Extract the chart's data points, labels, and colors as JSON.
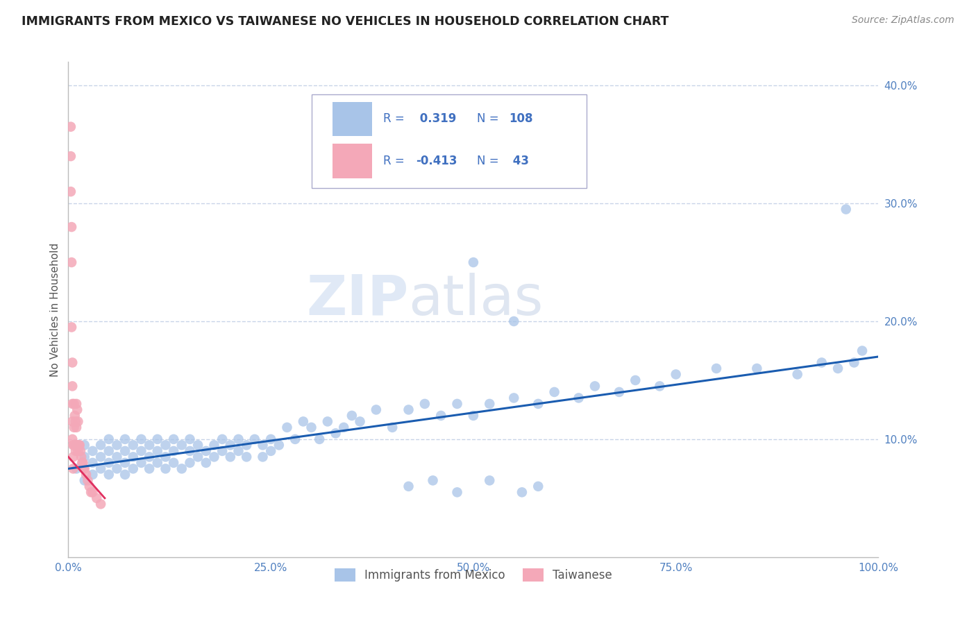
{
  "title": "IMMIGRANTS FROM MEXICO VS TAIWANESE NO VEHICLES IN HOUSEHOLD CORRELATION CHART",
  "source": "Source: ZipAtlas.com",
  "ylabel": "No Vehicles in Household",
  "xlim": [
    0,
    1.0
  ],
  "ylim": [
    0,
    0.42
  ],
  "yticks": [
    0.1,
    0.2,
    0.3,
    0.4
  ],
  "ytick_labels": [
    "10.0%",
    "20.0%",
    "30.0%",
    "40.0%"
  ],
  "xticks": [
    0,
    0.25,
    0.5,
    0.75,
    1.0
  ],
  "xtick_labels": [
    "0.0%",
    "25.0%",
    "50.0%",
    "75.0%",
    "100.0%"
  ],
  "blue_r": 0.319,
  "blue_n": 108,
  "pink_r": -0.413,
  "pink_n": 43,
  "blue_color": "#a8c4e8",
  "pink_color": "#f4a8b8",
  "blue_line_color": "#1a5cb0",
  "pink_line_color": "#e03060",
  "watermark_zip": "ZIP",
  "watermark_atlas": "atlas",
  "background_color": "#ffffff",
  "grid_color": "#c8d4e8",
  "title_color": "#222222",
  "source_color": "#888888",
  "axis_label_color": "#555555",
  "tick_color": "#5080c0",
  "legend_text_color": "#4070c0",
  "legend_n_color": "#4070c0",
  "blue_scatter_x": [
    0.01,
    0.01,
    0.02,
    0.02,
    0.02,
    0.03,
    0.03,
    0.03,
    0.04,
    0.04,
    0.04,
    0.05,
    0.05,
    0.05,
    0.05,
    0.06,
    0.06,
    0.06,
    0.07,
    0.07,
    0.07,
    0.07,
    0.08,
    0.08,
    0.08,
    0.09,
    0.09,
    0.09,
    0.1,
    0.1,
    0.1,
    0.11,
    0.11,
    0.11,
    0.12,
    0.12,
    0.12,
    0.13,
    0.13,
    0.13,
    0.14,
    0.14,
    0.15,
    0.15,
    0.15,
    0.16,
    0.16,
    0.17,
    0.17,
    0.18,
    0.18,
    0.19,
    0.19,
    0.2,
    0.2,
    0.21,
    0.21,
    0.22,
    0.22,
    0.23,
    0.24,
    0.24,
    0.25,
    0.25,
    0.26,
    0.27,
    0.28,
    0.29,
    0.3,
    0.31,
    0.32,
    0.33,
    0.34,
    0.35,
    0.36,
    0.38,
    0.4,
    0.42,
    0.44,
    0.46,
    0.48,
    0.5,
    0.52,
    0.55,
    0.58,
    0.6,
    0.63,
    0.65,
    0.68,
    0.7,
    0.73,
    0.75,
    0.8,
    0.85,
    0.9,
    0.93,
    0.95,
    0.97,
    0.5,
    0.55,
    0.42,
    0.45,
    0.48,
    0.52,
    0.56,
    0.58,
    0.96,
    0.98
  ],
  "blue_scatter_y": [
    0.095,
    0.075,
    0.085,
    0.095,
    0.065,
    0.09,
    0.08,
    0.07,
    0.085,
    0.095,
    0.075,
    0.09,
    0.08,
    0.1,
    0.07,
    0.085,
    0.095,
    0.075,
    0.09,
    0.08,
    0.1,
    0.07,
    0.085,
    0.095,
    0.075,
    0.09,
    0.08,
    0.1,
    0.085,
    0.095,
    0.075,
    0.09,
    0.08,
    0.1,
    0.085,
    0.095,
    0.075,
    0.09,
    0.08,
    0.1,
    0.095,
    0.075,
    0.09,
    0.08,
    0.1,
    0.085,
    0.095,
    0.09,
    0.08,
    0.095,
    0.085,
    0.09,
    0.1,
    0.095,
    0.085,
    0.09,
    0.1,
    0.095,
    0.085,
    0.1,
    0.095,
    0.085,
    0.1,
    0.09,
    0.095,
    0.11,
    0.1,
    0.115,
    0.11,
    0.1,
    0.115,
    0.105,
    0.11,
    0.12,
    0.115,
    0.125,
    0.11,
    0.125,
    0.13,
    0.12,
    0.13,
    0.12,
    0.13,
    0.135,
    0.13,
    0.14,
    0.135,
    0.145,
    0.14,
    0.15,
    0.145,
    0.155,
    0.16,
    0.16,
    0.155,
    0.165,
    0.16,
    0.165,
    0.25,
    0.2,
    0.06,
    0.065,
    0.055,
    0.065,
    0.055,
    0.06,
    0.295,
    0.175
  ],
  "pink_scatter_x": [
    0.003,
    0.003,
    0.003,
    0.004,
    0.004,
    0.004,
    0.005,
    0.005,
    0.005,
    0.005,
    0.005,
    0.006,
    0.006,
    0.006,
    0.007,
    0.007,
    0.007,
    0.008,
    0.008,
    0.009,
    0.009,
    0.01,
    0.01,
    0.01,
    0.011,
    0.011,
    0.012,
    0.012,
    0.013,
    0.014,
    0.015,
    0.016,
    0.017,
    0.018,
    0.019,
    0.02,
    0.022,
    0.024,
    0.026,
    0.028,
    0.03,
    0.035,
    0.04
  ],
  "pink_scatter_y": [
    0.365,
    0.34,
    0.31,
    0.28,
    0.25,
    0.195,
    0.165,
    0.145,
    0.13,
    0.115,
    0.1,
    0.095,
    0.085,
    0.075,
    0.13,
    0.11,
    0.095,
    0.12,
    0.095,
    0.115,
    0.09,
    0.13,
    0.11,
    0.095,
    0.125,
    0.095,
    0.115,
    0.09,
    0.095,
    0.095,
    0.09,
    0.085,
    0.08,
    0.08,
    0.075,
    0.075,
    0.07,
    0.065,
    0.06,
    0.055,
    0.055,
    0.05,
    0.045
  ],
  "blue_line_x": [
    0.0,
    1.0
  ],
  "blue_line_y": [
    0.075,
    0.17
  ],
  "pink_line_x": [
    0.0,
    0.045
  ],
  "pink_line_y": [
    0.085,
    0.05
  ]
}
